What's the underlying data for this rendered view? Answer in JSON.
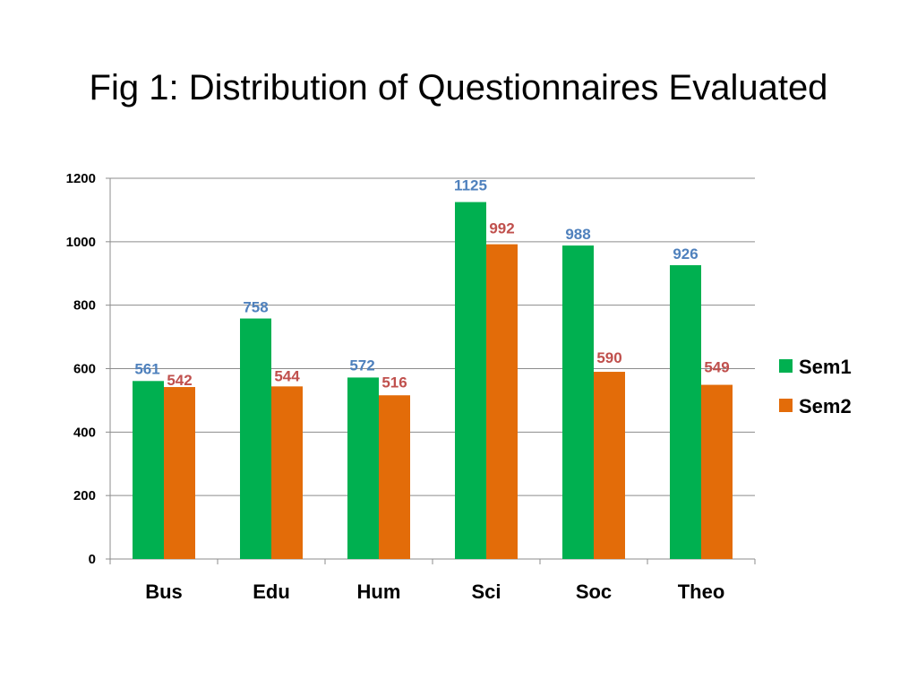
{
  "slide": {
    "title": "Fig 1: Distribution of Questionnaires Evaluated"
  },
  "chart_data": {
    "type": "bar",
    "title": "",
    "xlabel": "",
    "ylabel": "",
    "categories": [
      "Bus",
      "Edu",
      "Hum",
      "Sci",
      "Soc",
      "Theo"
    ],
    "series": [
      {
        "name": "Sem1",
        "values": [
          561,
          758,
          572,
          1125,
          988,
          926
        ],
        "color": "#00B050",
        "label_color": "#4F81BD"
      },
      {
        "name": "Sem2",
        "values": [
          542,
          544,
          516,
          992,
          590,
          549
        ],
        "color": "#E36C09",
        "label_color": "#C0504D"
      }
    ],
    "ylim": [
      0,
      1200
    ],
    "yticks": [
      0,
      200,
      400,
      600,
      800,
      1000,
      1200
    ],
    "grid": true,
    "legend": "right",
    "data_labels": true
  }
}
